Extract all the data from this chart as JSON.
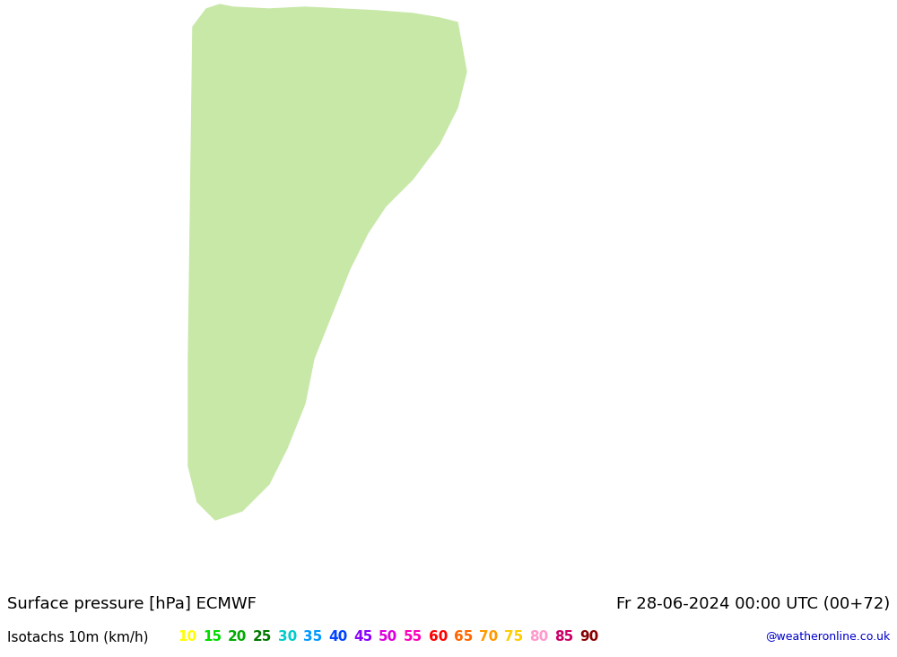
{
  "title_left": "Surface pressure [hPa] ECMWF",
  "title_right": "Fr 28-06-2024 00:00 UTC (00+72)",
  "legend_label": "Isotachs 10m (km/h)",
  "legend_values": [
    10,
    15,
    20,
    25,
    30,
    35,
    40,
    45,
    50,
    55,
    60,
    65,
    70,
    75,
    80,
    85,
    90
  ],
  "legend_colors": [
    "#ffff00",
    "#00dd00",
    "#00aa00",
    "#007700",
    "#00cccc",
    "#0099ff",
    "#0044ff",
    "#8800ff",
    "#dd00dd",
    "#ff00bb",
    "#ff0000",
    "#ff6600",
    "#ff9900",
    "#ffcc00",
    "#ff99cc",
    "#cc0066",
    "#880000"
  ],
  "watermark": "@weatheronline.co.uk",
  "bg_color": "#ffffff",
  "bottom_bar_color": "#ffffff",
  "text_color": "#000000",
  "title_fontsize": 13,
  "legend_fontsize": 11,
  "watermark_color": "#0000cc",
  "fig_width": 10.0,
  "fig_height": 7.33,
  "dpi": 100
}
